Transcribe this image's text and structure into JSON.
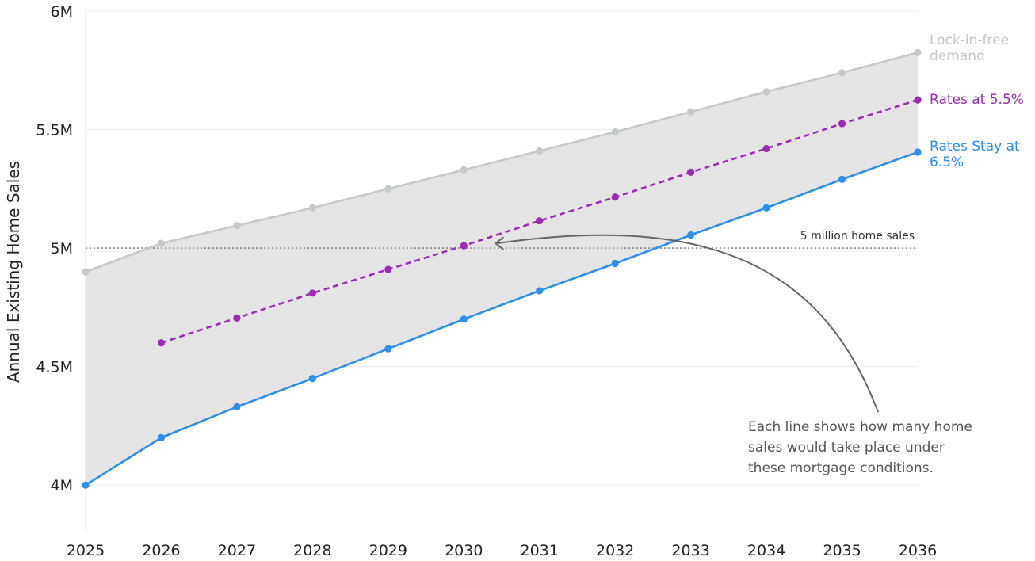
{
  "chart_data": {
    "type": "line",
    "title": "",
    "xlabel": "",
    "ylabel": "Annual Existing Home Sales",
    "x": [
      2025,
      2026,
      2027,
      2028,
      2029,
      2030,
      2031,
      2032,
      2033,
      2034,
      2035,
      2036
    ],
    "xlim": [
      2025,
      2036
    ],
    "ylim": [
      3800000,
      6000000
    ],
    "yticks": [
      {
        "value": 4000000,
        "label": "4M"
      },
      {
        "value": 4500000,
        "label": "4.5M"
      },
      {
        "value": 5000000,
        "label": "5M"
      },
      {
        "value": 5500000,
        "label": "5.5M"
      },
      {
        "value": 6000000,
        "label": "6M"
      }
    ],
    "grid": true,
    "series": [
      {
        "name": "Lock-in-free demand",
        "label_lines": [
          "Lock-in-free",
          "demand"
        ],
        "color": "#c4c9cc",
        "dashed": false,
        "values": [
          4900000,
          5020000,
          5095000,
          5170000,
          5250000,
          5330000,
          5410000,
          5490000,
          5575000,
          5660000,
          5740000,
          5825000
        ]
      },
      {
        "name": "Rates at 5.5%",
        "label_lines": [
          "Rates at 5.5%"
        ],
        "color": "#9b2bb5",
        "dashed": true,
        "values": [
          null,
          4600000,
          4705000,
          4810000,
          4910000,
          5010000,
          5115000,
          5215000,
          5320000,
          5420000,
          5525000,
          5625000
        ]
      },
      {
        "name": "Rates Stay at 6.5%",
        "label_lines": [
          "Rates Stay at",
          "6.5%"
        ],
        "color": "#2b8ef0",
        "dashed": false,
        "values": [
          4000000,
          4200000,
          4330000,
          4450000,
          4575000,
          4700000,
          4820000,
          4935000,
          5055000,
          5170000,
          5290000,
          5405000
        ]
      }
    ],
    "fill_between": {
      "upper": "Lock-in-free demand",
      "lower": "Rates Stay at 6.5%",
      "color": "#e4e4e4"
    },
    "reference_line": {
      "value": 5000000,
      "label": "5 million home sales"
    },
    "annotation": {
      "lines": [
        "Each line shows how many home",
        "sales would take place under",
        "these mortgage conditions."
      ],
      "points_to": {
        "x": 2030.4,
        "y": 5010000
      }
    }
  }
}
